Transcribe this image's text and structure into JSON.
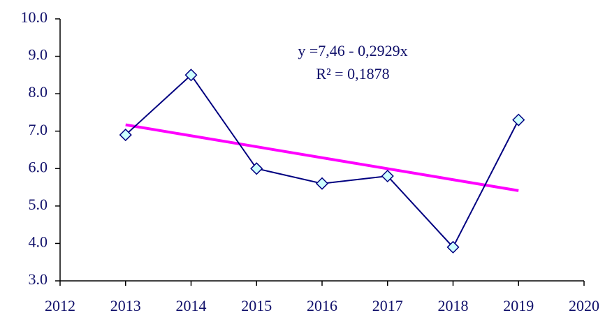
{
  "chart_data": {
    "type": "line",
    "x": [
      2013,
      2014,
      2015,
      2016,
      2017,
      2018,
      2019
    ],
    "series": [
      {
        "color": "#000080",
        "marker_color": "#ccffff",
        "values": [
          6.9,
          8.5,
          6.0,
          5.6,
          5.8,
          3.9,
          7.3
        ]
      }
    ],
    "trendline": {
      "x": [
        2013,
        2019
      ],
      "values": [
        7.17,
        5.41
      ],
      "color": "#ff00ff"
    },
    "annotations": [
      "y =7,46 - 0,2929x",
      "R² = 0,1878"
    ],
    "xlim": [
      2012,
      2020
    ],
    "xticks": [
      2012,
      2013,
      2014,
      2015,
      2016,
      2017,
      2018,
      2019,
      2020
    ],
    "ylim": [
      3,
      10
    ],
    "yticks": [
      {
        "value": 3,
        "label": "3.0"
      },
      {
        "value": 4,
        "label": "4.0"
      },
      {
        "value": 5,
        "label": "5.0"
      },
      {
        "value": 6,
        "label": "6.0"
      },
      {
        "value": 7,
        "label": "7.0"
      },
      {
        "value": 8,
        "label": "8.0"
      },
      {
        "value": 9,
        "label": "9.0"
      },
      {
        "value": 10,
        "label": "10.0"
      }
    ],
    "grid": false
  }
}
